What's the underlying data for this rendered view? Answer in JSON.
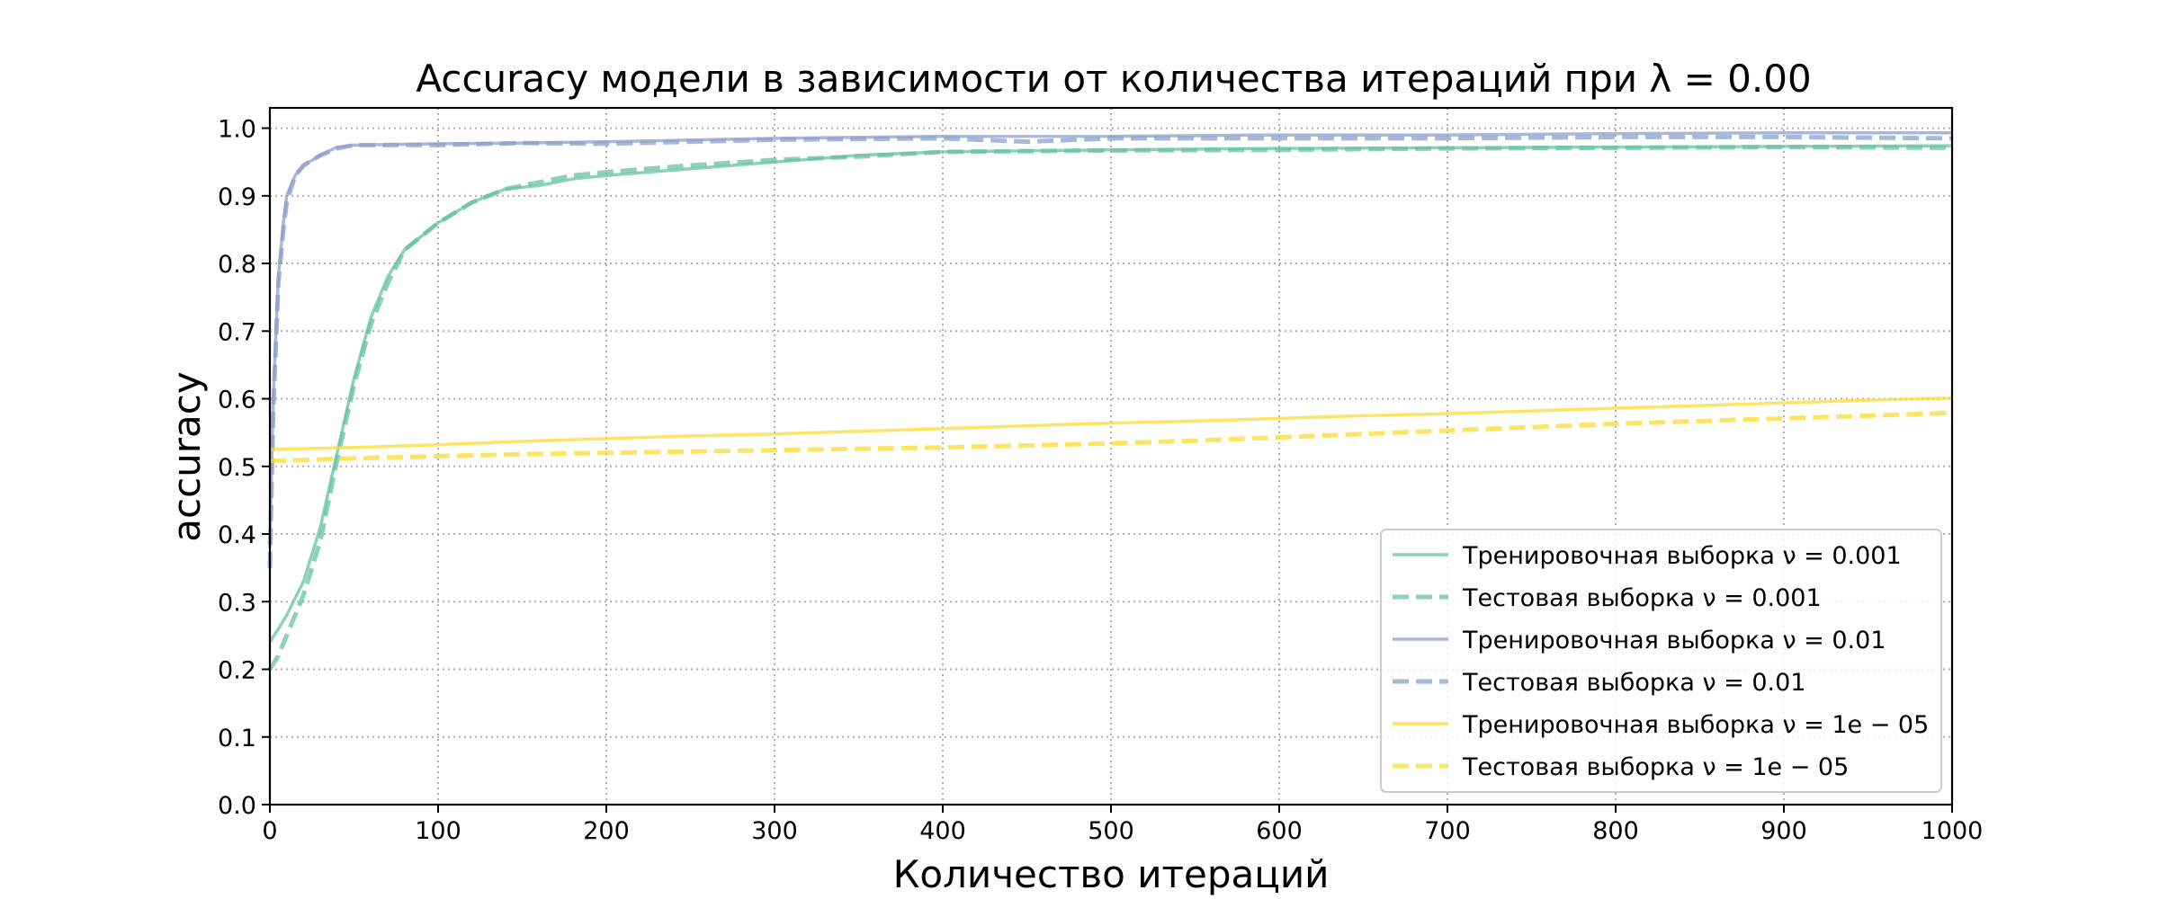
{
  "chart_data": {
    "type": "line",
    "title": "Accuracy модели в зависимости от количества итераций при λ = 0.00",
    "xlabel": "Количество итераций",
    "ylabel": "accuracy",
    "xlim": [
      0,
      1000
    ],
    "ylim": [
      0.0,
      1.03
    ],
    "xticks": [
      0,
      100,
      200,
      300,
      400,
      500,
      600,
      700,
      800,
      900,
      1000
    ],
    "yticks": [
      0.0,
      0.1,
      0.2,
      0.3,
      0.4,
      0.5,
      0.6,
      0.7,
      0.8,
      0.9,
      1.0
    ],
    "xtick_labels": [
      "0",
      "100",
      "200",
      "300",
      "400",
      "500",
      "600",
      "700",
      "800",
      "900",
      "1000"
    ],
    "ytick_labels": [
      "0.0",
      "0.1",
      "0.2",
      "0.3",
      "0.4",
      "0.5",
      "0.6",
      "0.7",
      "0.8",
      "0.9",
      "1.0"
    ],
    "grid": true,
    "legend_position": "lower-right",
    "series": [
      {
        "name": "Тренировочная выборка ν = 0.001",
        "color": "#66c2a5",
        "style": "solid",
        "x": [
          0,
          5,
          10,
          20,
          30,
          40,
          50,
          60,
          70,
          80,
          90,
          100,
          120,
          140,
          160,
          180,
          200,
          250,
          300,
          350,
          400,
          500,
          600,
          700,
          800,
          900,
          1000
        ],
        "y": [
          0.24,
          0.26,
          0.28,
          0.33,
          0.41,
          0.52,
          0.63,
          0.72,
          0.78,
          0.82,
          0.84,
          0.86,
          0.89,
          0.91,
          0.915,
          0.925,
          0.93,
          0.94,
          0.95,
          0.96,
          0.965,
          0.968,
          0.97,
          0.971,
          0.972,
          0.973,
          0.974
        ]
      },
      {
        "name": "Тестовая выборка ν = 0.001",
        "color": "#66c2a5",
        "style": "dashed",
        "x": [
          0,
          5,
          10,
          20,
          30,
          40,
          50,
          60,
          70,
          80,
          90,
          100,
          120,
          140,
          160,
          180,
          200,
          250,
          300,
          350,
          400,
          500,
          600,
          700,
          800,
          900,
          1000
        ],
        "y": [
          0.2,
          0.22,
          0.25,
          0.31,
          0.39,
          0.51,
          0.62,
          0.71,
          0.77,
          0.82,
          0.84,
          0.86,
          0.89,
          0.91,
          0.92,
          0.93,
          0.935,
          0.945,
          0.953,
          0.958,
          0.965,
          0.967,
          0.968,
          0.97,
          0.971,
          0.972,
          0.971
        ]
      },
      {
        "name": "Тренировочная выборка ν = 0.01",
        "color": "#8da0cb",
        "style": "solid",
        "x": [
          0,
          2,
          5,
          8,
          10,
          15,
          20,
          30,
          40,
          50,
          100,
          150,
          200,
          300,
          400,
          500,
          600,
          700,
          800,
          900,
          1000
        ],
        "y": [
          0.38,
          0.6,
          0.78,
          0.86,
          0.9,
          0.93,
          0.945,
          0.96,
          0.972,
          0.975,
          0.977,
          0.978,
          0.98,
          0.985,
          0.988,
          0.988,
          0.99,
          0.99,
          0.992,
          0.993,
          0.993
        ]
      },
      {
        "name": "Тестовая выборка ν = 0.01",
        "color": "#8da0cb",
        "style": "dashed",
        "x": [
          0,
          2,
          5,
          8,
          10,
          15,
          20,
          30,
          40,
          50,
          100,
          150,
          200,
          300,
          400,
          450,
          500,
          600,
          700,
          800,
          900,
          1000
        ],
        "y": [
          0.35,
          0.58,
          0.77,
          0.85,
          0.89,
          0.93,
          0.945,
          0.96,
          0.97,
          0.975,
          0.975,
          0.978,
          0.977,
          0.983,
          0.985,
          0.98,
          0.985,
          0.985,
          0.985,
          0.987,
          0.987,
          0.985
        ]
      },
      {
        "name": "Тренировочная выборка ν = 1e − 05",
        "color": "#ffd92f",
        "style": "solid",
        "x": [
          0,
          50,
          100,
          150,
          200,
          250,
          300,
          350,
          400,
          450,
          500,
          550,
          600,
          650,
          700,
          750,
          800,
          850,
          900,
          950,
          1000
        ],
        "y": [
          0.525,
          0.528,
          0.532,
          0.537,
          0.541,
          0.545,
          0.548,
          0.552,
          0.556,
          0.56,
          0.564,
          0.567,
          0.571,
          0.575,
          0.578,
          0.582,
          0.586,
          0.59,
          0.594,
          0.598,
          0.601
        ]
      },
      {
        "name": "Тестовая выборка ν = 1e − 05",
        "color": "#ffd92f",
        "style": "dashed",
        "x": [
          0,
          50,
          100,
          150,
          200,
          250,
          300,
          350,
          400,
          450,
          500,
          550,
          600,
          650,
          700,
          750,
          800,
          850,
          900,
          950,
          1000
        ],
        "y": [
          0.508,
          0.512,
          0.515,
          0.518,
          0.52,
          0.522,
          0.524,
          0.526,
          0.528,
          0.531,
          0.534,
          0.538,
          0.543,
          0.548,
          0.553,
          0.558,
          0.563,
          0.567,
          0.571,
          0.575,
          0.579
        ]
      }
    ]
  }
}
